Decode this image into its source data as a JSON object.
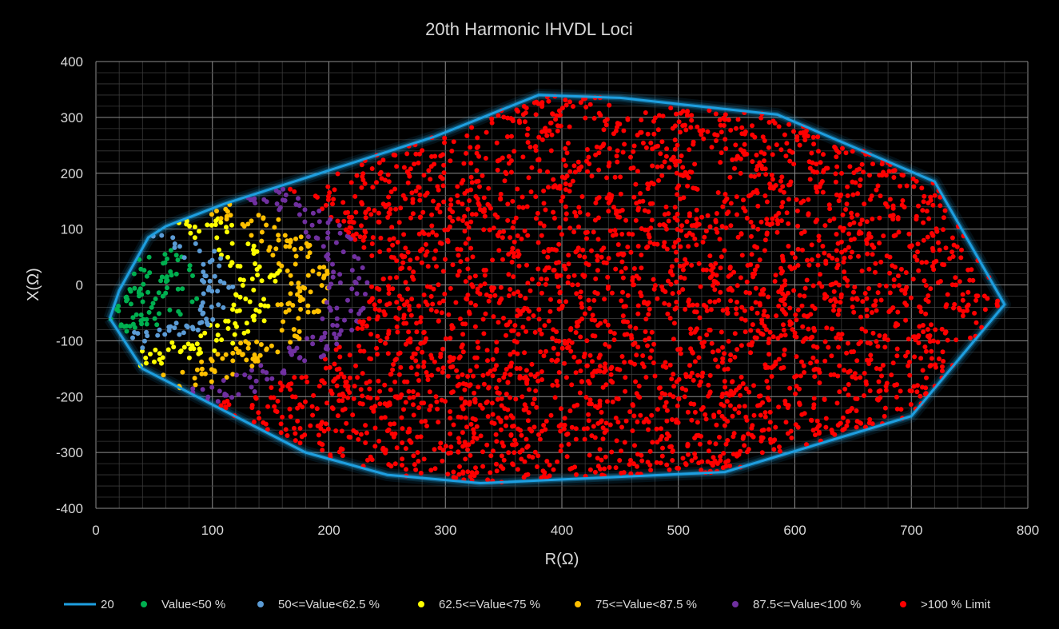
{
  "chart_data": {
    "type": "scatter",
    "title": "20th Harmonic IHVDL Loci",
    "xlabel": "R(Ω)",
    "ylabel": "X(Ω)",
    "xlim": [
      0,
      800
    ],
    "ylim": [
      -400,
      400
    ],
    "x_ticks": [
      "0",
      "100",
      "200",
      "300",
      "400",
      "500",
      "600",
      "700",
      "800"
    ],
    "y_ticks": [
      "400",
      "300",
      "200",
      "100",
      "0",
      "-100",
      "-200",
      "-300",
      "-400"
    ],
    "grid": true,
    "legend_position": "bottom",
    "locus": {
      "name": "20",
      "color": "#1e9fe0",
      "points": [
        [
          12,
          -60
        ],
        [
          20,
          -10
        ],
        [
          45,
          85
        ],
        [
          60,
          105
        ],
        [
          110,
          145
        ],
        [
          200,
          205
        ],
        [
          290,
          265
        ],
        [
          380,
          340
        ],
        [
          450,
          335
        ],
        [
          585,
          305
        ],
        [
          720,
          185
        ],
        [
          780,
          -35
        ],
        [
          700,
          -235
        ],
        [
          540,
          -335
        ],
        [
          330,
          -355
        ],
        [
          250,
          -340
        ],
        [
          180,
          -300
        ],
        [
          40,
          -150
        ],
        [
          12,
          -60
        ]
      ]
    },
    "series": [
      {
        "name": "Value<50 %",
        "color": "#00b050"
      },
      {
        "name": "50<=Value<62.5 %",
        "color": "#5b9bd5"
      },
      {
        "name": "62.5<=Value<75 %",
        "color": "#ffff00"
      },
      {
        "name": "75<=Value<87.5 %",
        "color": "#ffc000"
      },
      {
        "name": "87.5<=Value<100 %",
        "color": "#7030a0"
      },
      {
        "name": ">100 % Limit",
        "color": "#ff0000"
      }
    ],
    "band_origin": [
      0,
      0
    ],
    "band_radii": [
      90,
      120,
      160,
      200,
      235
    ]
  }
}
